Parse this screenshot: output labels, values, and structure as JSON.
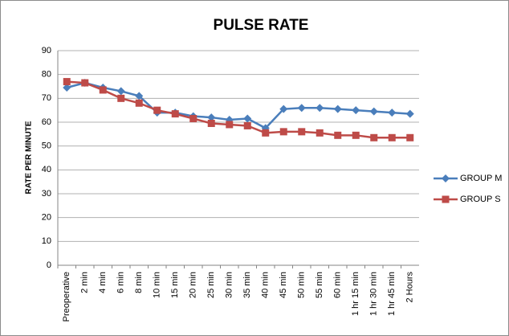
{
  "chart_data": {
    "type": "line",
    "title": "PULSE RATE",
    "y_label": "RATE  PER MINUTE",
    "categories": [
      "Preoperative",
      "2 min",
      "4 min",
      "6 min",
      "8 min",
      "10 min",
      "15 min",
      "20 min",
      "25 min",
      "30 min",
      "35 min",
      "40 min",
      "45 min",
      "50 min",
      "55 min",
      "60 min",
      "1 hr 15 min",
      "1 hr 30 min",
      "1 hr 45 min",
      "2 Hours"
    ],
    "series": [
      {
        "name": "GROUP M",
        "color": "#4a7ebb",
        "marker": "diamond",
        "values": [
          74.5,
          76.5,
          74.5,
          73,
          71,
          64,
          64,
          62.5,
          62,
          61,
          61.5,
          57.5,
          65.5,
          66,
          66,
          65.5,
          65,
          64.5,
          64,
          63.5
        ]
      },
      {
        "name": "GROUP S",
        "color": "#be4b48",
        "marker": "square",
        "values": [
          77,
          76.5,
          73.5,
          70,
          68,
          65,
          63.5,
          61.5,
          59.5,
          59,
          58.5,
          55.5,
          56,
          56,
          55.5,
          54.5,
          54.5,
          53.5,
          53.5,
          53.5
        ]
      }
    ],
    "ylim": [
      0,
      90
    ],
    "yticks": [
      0,
      10,
      20,
      30,
      40,
      50,
      60,
      70,
      80,
      90
    ],
    "grid": true,
    "legend": "right"
  }
}
